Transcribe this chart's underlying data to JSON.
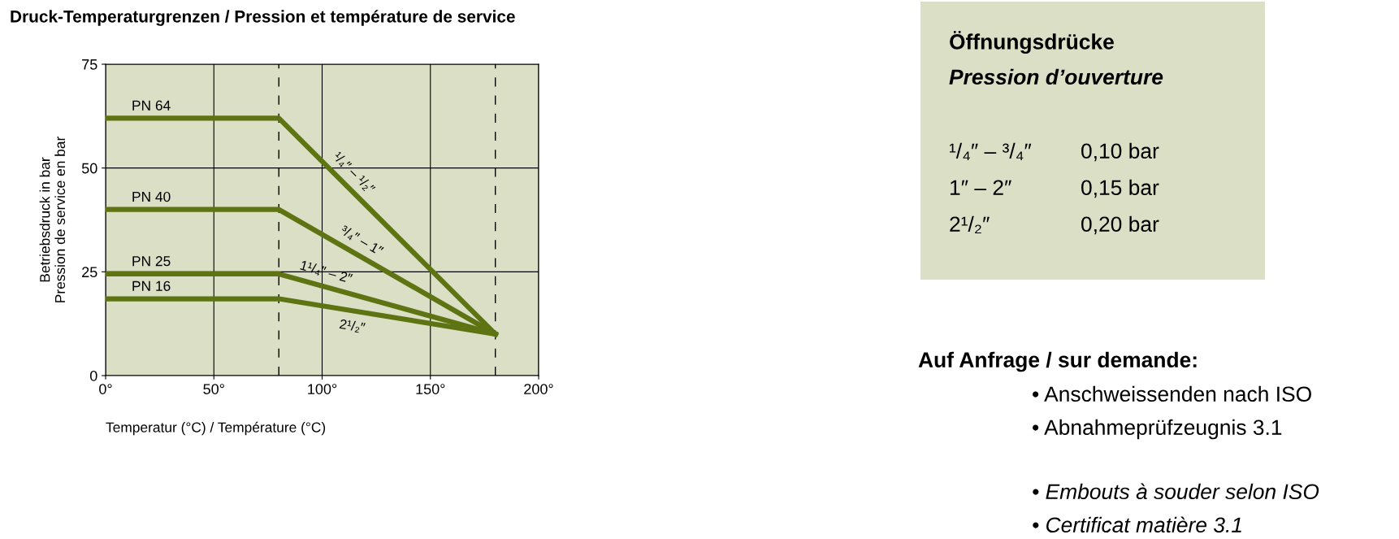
{
  "chart_data": [
    {
      "type": "line",
      "title": "Druck-Temperaturgrenzen / Pression et température de service",
      "xlabel": "Temperatur (°C) / Température (°C)",
      "ylabel": "Betriebsdruck in bar\nPression de service en bar",
      "series": [
        {
          "name": "PN 64",
          "color": "#5e7312",
          "x": [
            0,
            80,
            180
          ],
          "values": [
            62,
            62,
            10
          ]
        },
        {
          "name": "PN 40",
          "color": "#5e7312",
          "x": [
            0,
            80,
            180
          ],
          "values": [
            40,
            40,
            10
          ]
        },
        {
          "name": "PN 25",
          "color": "#5e7312",
          "x": [
            0,
            80,
            180
          ],
          "values": [
            24.5,
            24.5,
            10
          ]
        },
        {
          "name": "PN 16",
          "color": "#5e7312",
          "x": [
            0,
            80,
            180
          ],
          "values": [
            18.5,
            18.5,
            10
          ]
        }
      ],
      "annotations": [
        {
          "text": "¹/₄″ – ¹/₂″",
          "x": 110,
          "y": 46.4
        },
        {
          "text": "³/₄″ – 1″",
          "x": 115,
          "y": 29.5
        },
        {
          "text": "1¹/₄″ – 2″",
          "x": 100,
          "y": 21.6
        },
        {
          "text": "2¹/₂″",
          "x": 115,
          "y": 15.5
        }
      ],
      "xlim": [
        0,
        200
      ],
      "ylim": [
        0,
        75
      ],
      "xticks": [
        {
          "value": 0,
          "label": "0°"
        },
        {
          "value": 50,
          "label": "50°"
        },
        {
          "value": 100,
          "label": "100°"
        },
        {
          "value": 150,
          "label": "150°"
        },
        {
          "value": 200,
          "label": "200°"
        }
      ],
      "yticks": [
        0,
        25,
        50,
        75
      ],
      "grid": true,
      "ref_lines": [
        {
          "axis": "x",
          "value": 80,
          "line_style": "dashed",
          "color": "#000000"
        },
        {
          "axis": "x",
          "value": 180,
          "line_style": "dashed",
          "color": "#000000"
        }
      ]
    },
    {
      "type": "other",
      "title": "Öffnungsdrücke",
      "subtitle": "Pression d’ouverture",
      "annotations": [
        "¹/₄″ – ³/₄″",
        "0,10 bar",
        "1″ – 2″",
        "0,15 bar",
        "2¹/₂″",
        "0,20 bar",
        "Auf Anfrage / sur demande:",
        "• Anschweissenden nach ISO",
        "• Abnahmeprüfzeugnis 3.1",
        "• Embouts à souder selon ISO",
        "• Certificat matière 3.1"
      ]
    }
  ]
}
